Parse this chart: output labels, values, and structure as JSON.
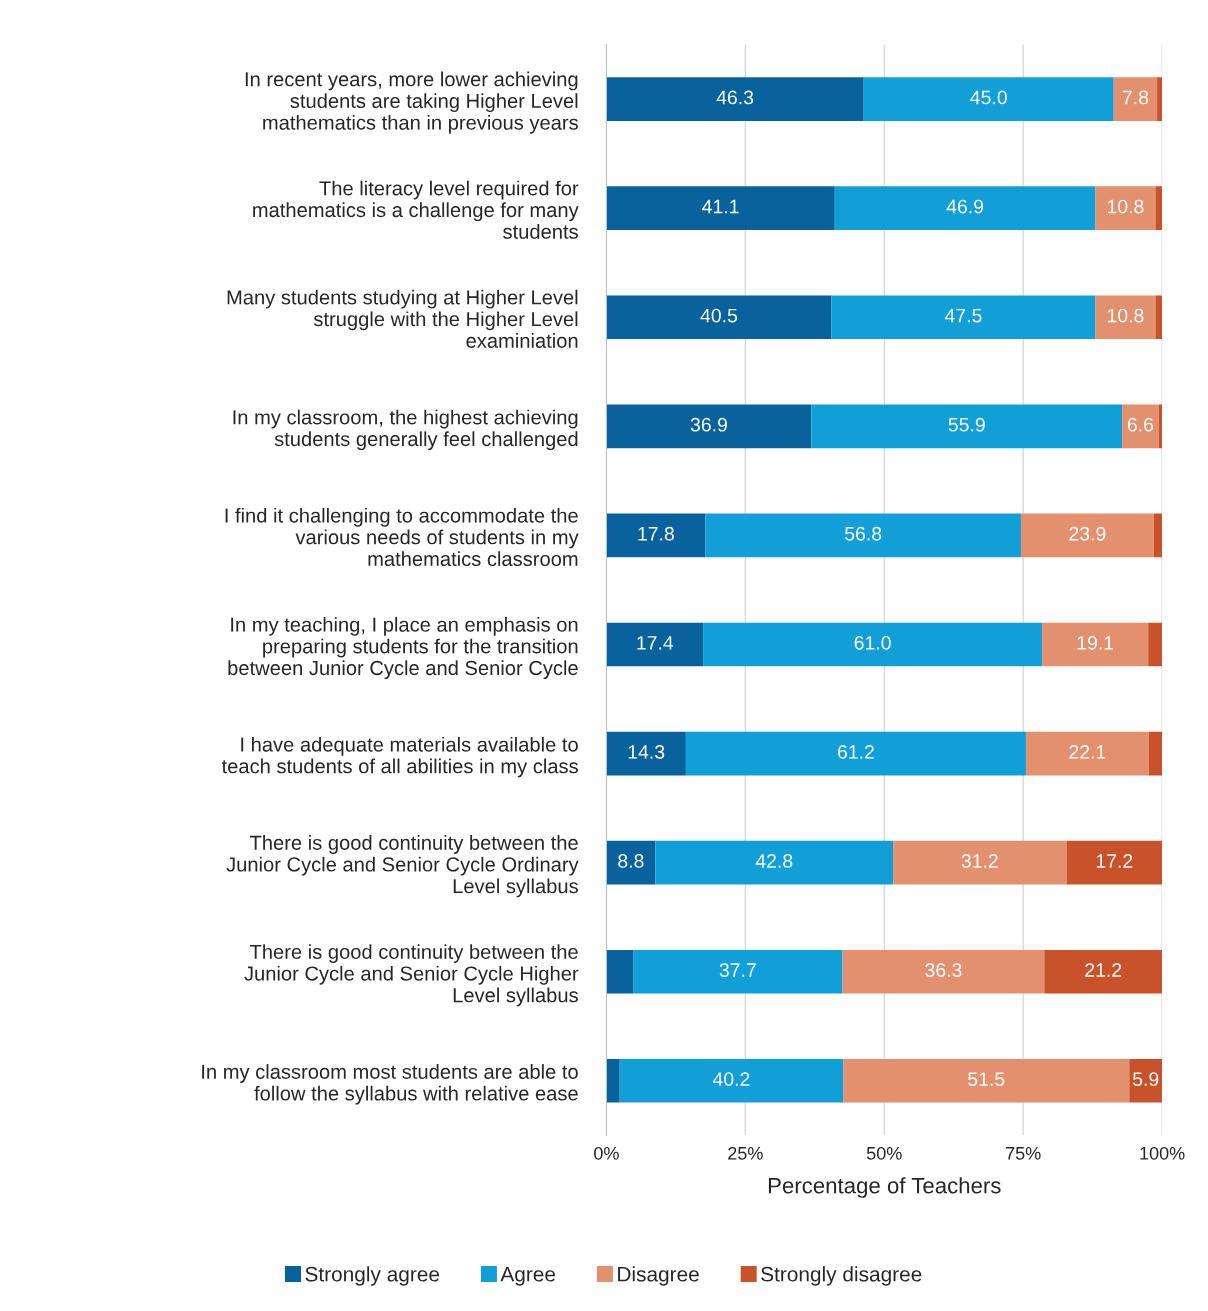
{
  "chart_data": {
    "type": "bar",
    "orientation": "horizontal",
    "stacked": true,
    "xlabel": "Percentage of Teachers",
    "categories": [
      "In recent years, more lower achieving\nstudents are taking Higher Level\nmathematics than in previous years",
      "The literacy level required for\nmathematics is a challenge for many\nstudents",
      "Many students studying at Higher Level\nstruggle with the Higher Level\nexaminiation",
      "In my classroom, the highest achieving\nstudents generally feel challenged",
      "I find it challenging to accommodate the\nvarious needs of students in my\nmathematics classroom",
      "In my teaching, I place an emphasis on\npreparing students for the transition\nbetween Junior Cycle and Senior Cycle",
      "I have adequate materials available to\nteach students of all abilities in my class",
      "There is good continuity between the\nJunior Cycle and Senior Cycle Ordinary\nLevel syllabus",
      "There is good continuity between the\nJunior Cycle and Senior Cycle Higher\nLevel syllabus",
      "In my classroom most students are able to\nfollow the syllabus with relative ease"
    ],
    "series": [
      {
        "name": "Strongly agree",
        "color": "#08639c",
        "values": [
          46.3,
          41.1,
          40.5,
          36.9,
          17.8,
          17.4,
          14.3,
          8.8,
          4.8,
          2.4
        ],
        "value_labels": [
          "46.3",
          "41.1",
          "40.5",
          "36.9",
          "17.8",
          "17.4",
          "14.3",
          "8.8",
          null,
          null
        ]
      },
      {
        "name": "Agree",
        "color": "#129fd8",
        "values": [
          45.0,
          46.9,
          47.5,
          55.9,
          56.8,
          61.0,
          61.2,
          42.8,
          37.7,
          40.2
        ],
        "value_labels": [
          "45.0",
          "46.9",
          "47.5",
          "55.9",
          "56.8",
          "61.0",
          "61.2",
          "42.8",
          "37.7",
          "40.2"
        ]
      },
      {
        "name": "Disagree",
        "color": "#e3906f",
        "values": [
          7.8,
          10.8,
          10.8,
          6.6,
          23.9,
          19.1,
          22.1,
          31.2,
          36.3,
          51.5
        ],
        "value_labels": [
          "7.8",
          "10.8",
          "10.8",
          "6.6",
          "23.9",
          "19.1",
          "22.1",
          "31.2",
          "36.3",
          "51.5"
        ]
      },
      {
        "name": "Strongly disagree",
        "color": "#c8532b",
        "values": [
          0.9,
          1.2,
          1.2,
          0.6,
          1.5,
          2.5,
          2.4,
          17.2,
          21.2,
          5.9
        ],
        "value_labels": [
          null,
          null,
          null,
          null,
          null,
          null,
          null,
          "17.2",
          "21.2",
          "5.9"
        ]
      }
    ],
    "xlim": [
      0,
      100
    ],
    "xticks": [
      {
        "value": 0,
        "label": "0%"
      },
      {
        "value": 25,
        "label": "25%"
      },
      {
        "value": 50,
        "label": "50%"
      },
      {
        "value": 75,
        "label": "75%"
      },
      {
        "value": 100,
        "label": "100%"
      }
    ],
    "grid": "x",
    "legend": "bottom"
  }
}
